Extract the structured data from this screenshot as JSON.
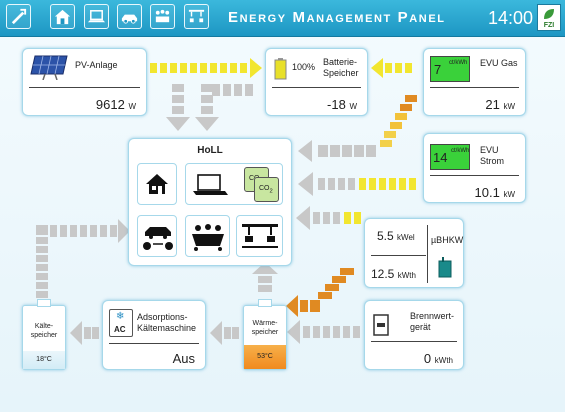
{
  "header": {
    "title": "Energy Management Panel",
    "time": "14:00",
    "logo_text": "FZI"
  },
  "pv": {
    "label": "PV-Anlage",
    "value": "9612",
    "unit": "W"
  },
  "battery": {
    "percent": "100%",
    "label": "Batterie-Speicher",
    "value": "-18",
    "unit": "W"
  },
  "evu_gas": {
    "price": "7",
    "price_unit": "ct/kWh",
    "label": "EVU Gas",
    "value": "21",
    "unit": "kW"
  },
  "evu_strom": {
    "price": "14",
    "price_unit": "ct/kWh",
    "label": "EVU Strom",
    "value": "10.1",
    "unit": "kW"
  },
  "holl": {
    "label": "HoLL"
  },
  "ubhkw": {
    "label": "µBHKW",
    "el_value": "5.5",
    "el_unit": "kWel",
    "th_value": "12.5",
    "th_unit": "kWth"
  },
  "brennwert": {
    "label": "Brennwert-gerät",
    "value": "0",
    "unit": "kWth"
  },
  "kaelte_speicher": {
    "label": "Kälte-speicher",
    "temp": "18°C"
  },
  "adsorption": {
    "label": "Adsorptions-Kältemaschine",
    "ac": "AC",
    "status": "Aus"
  },
  "waerme_speicher": {
    "label": "Wärme-speicher",
    "temp": "53°C"
  },
  "colors": {
    "accent": "#1d96c3",
    "yellow": "#f2e62f",
    "orange": "#e08a22",
    "green": "#3ad13a",
    "gray_arrow": "#c8c8c8"
  },
  "nav_icons": [
    "settings-icon",
    "house-icon",
    "laptop-icon",
    "car-icon",
    "meeting-icon",
    "lab-icon"
  ]
}
